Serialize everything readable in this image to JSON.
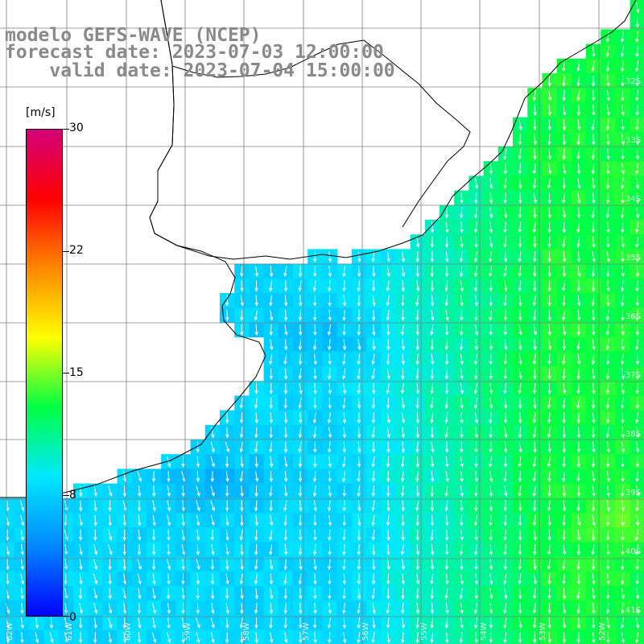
{
  "header": {
    "line1": "modelo GEFS-WAVE (NCEP)",
    "line2": "forecast date: 2023-07-03 12:00:00",
    "line3": "    valid date: 2023-07-04 15:00:00"
  },
  "colorbar": {
    "unit": "[m/s]",
    "ticks": [
      "30",
      "22",
      "15",
      "8",
      "0"
    ],
    "tick_values": [
      30,
      22,
      15,
      8,
      0
    ],
    "min": 0,
    "max": 30,
    "colors": [
      "#0000ff",
      "#0088ff",
      "#00e8ff",
      "#00ff44",
      "#ffff00",
      "#ff8800",
      "#ff0000",
      "#d4007a"
    ]
  },
  "map": {
    "background": "#ffffff",
    "land_color": "#ffffff",
    "coast_color": "#000000",
    "grid_color": "#808080",
    "arrow_color": "#ffffff",
    "lat_labels": [
      "32S",
      "33S",
      "34S",
      "35S",
      "36S",
      "37S",
      "38S",
      "39S",
      "40S",
      "41S"
    ],
    "lon_labels": [
      "62W",
      "61W",
      "60W",
      "59W",
      "58W",
      "57W",
      "56W",
      "55W",
      "54W",
      "53W",
      "52W"
    ],
    "typical_speed_ms": 9,
    "max_speed_ms": 13,
    "wind_direction": "from north"
  }
}
